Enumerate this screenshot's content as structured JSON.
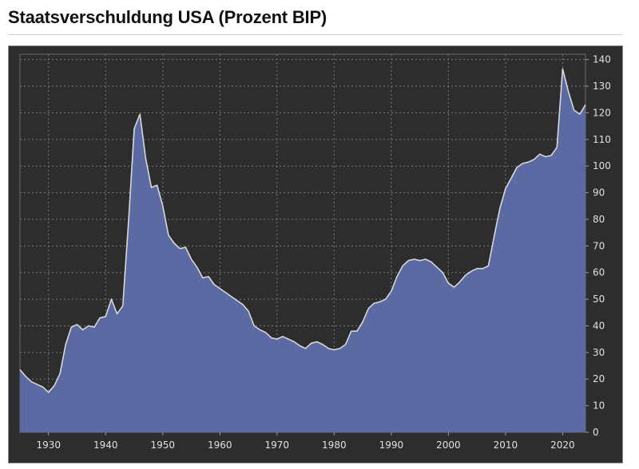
{
  "page": {
    "title": "Staatsverschuldung USA (Prozent BIP)"
  },
  "chart_data": {
    "type": "area",
    "title": "Staatsverschuldung USA (Prozent BIP)",
    "xlabel": "",
    "ylabel": "",
    "xlim": [
      1925,
      2024
    ],
    "ylim": [
      0,
      142
    ],
    "x_ticks": [
      1930,
      1940,
      1950,
      1960,
      1970,
      1980,
      1990,
      2000,
      2010,
      2020
    ],
    "y_ticks": [
      0,
      10,
      20,
      30,
      40,
      50,
      60,
      70,
      80,
      90,
      100,
      110,
      120,
      130,
      140
    ],
    "y_axis_side": "right",
    "grid": true,
    "colors": {
      "background": "#2d2d2d",
      "fill": "#5b6aa3",
      "line": "#d8d8d8",
      "grid": "#7a7a7a",
      "tick_text": "#e0e0e0"
    },
    "series": [
      {
        "x": [
          1925,
          1926,
          1927,
          1928,
          1929,
          1930,
          1931,
          1932,
          1933,
          1934,
          1935,
          1936,
          1937,
          1938,
          1939,
          1940,
          1941,
          1942,
          1943,
          1944,
          1945,
          1946,
          1947,
          1948,
          1949,
          1950,
          1951,
          1952,
          1953,
          1954,
          1955,
          1956,
          1957,
          1958,
          1959,
          1960,
          1961,
          1962,
          1963,
          1964,
          1965,
          1966,
          1967,
          1968,
          1969,
          1970,
          1971,
          1972,
          1973,
          1974,
          1975,
          1976,
          1977,
          1978,
          1979,
          1980,
          1981,
          1982,
          1983,
          1984,
          1985,
          1986,
          1987,
          1988,
          1989,
          1990,
          1991,
          1992,
          1993,
          1994,
          1995,
          1996,
          1997,
          1998,
          1999,
          2000,
          2001,
          2002,
          2003,
          2004,
          2005,
          2006,
          2007,
          2008,
          2009,
          2010,
          2011,
          2012,
          2013,
          2014,
          2015,
          2016,
          2017,
          2018,
          2019,
          2020,
          2021,
          2022,
          2023,
          2024
        ],
        "values": [
          23.5,
          21,
          19,
          18,
          17,
          15,
          17.5,
          22,
          33,
          39.5,
          40.5,
          38.5,
          40,
          39.5,
          43,
          43.5,
          50,
          44.5,
          47.5,
          79,
          114,
          119.5,
          103,
          92,
          92.8,
          85,
          74,
          71,
          69,
          69.5,
          65,
          62,
          58,
          58.5,
          55.5,
          54,
          52.5,
          51,
          49.5,
          48,
          45.5,
          40,
          38.5,
          37.5,
          35.5,
          35,
          36,
          35,
          34,
          32.5,
          31.5,
          33.5,
          34,
          33,
          31.5,
          31,
          31.5,
          33,
          38,
          38,
          41.5,
          46.5,
          48.5,
          49,
          50,
          53,
          58.5,
          62.5,
          64.5,
          65,
          64.5,
          65,
          64,
          62,
          60,
          56,
          54.5,
          56.5,
          59,
          60.5,
          61.5,
          61.5,
          62.5,
          73.5,
          84,
          91.5,
          95.5,
          99.5,
          101,
          101.5,
          102.5,
          104.5,
          103.5,
          104,
          107,
          136.5,
          128,
          121,
          119.5,
          123
        ]
      }
    ]
  }
}
